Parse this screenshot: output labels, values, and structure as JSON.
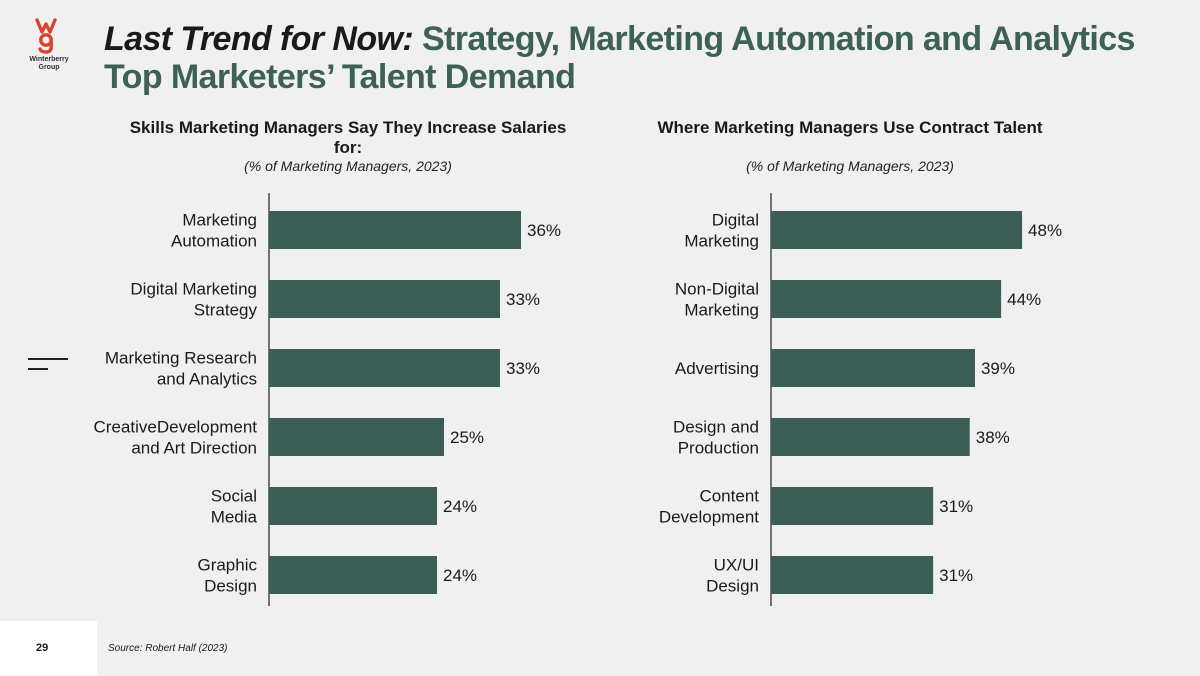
{
  "logo": {
    "text_line1": "Winterberry",
    "text_line2": "Group"
  },
  "title": {
    "lead": "Last Trend for Now:",
    "rest": "Strategy, Marketing Automation and Analytics",
    "line2": "Top Marketers’ Talent Demand"
  },
  "colors": {
    "bar": "#3b5f56",
    "title_accent": "#3d6057",
    "logo_red": "#d9442b"
  },
  "chart_data": [
    {
      "type": "bar",
      "orientation": "horizontal",
      "title": "Skills Marketing Managers Say They Increase Salaries for:",
      "subtitle": "(% of Marketing Managers, 2023)",
      "categories": [
        [
          "Marketing",
          "Automation"
        ],
        [
          "Digital Marketing",
          "Strategy"
        ],
        [
          "Marketing Research",
          "and Analytics"
        ],
        [
          "CreativeDevelopment",
          "and Art Direction"
        ],
        [
          "Social",
          "Media"
        ],
        [
          "Graphic",
          "Design"
        ]
      ],
      "values": [
        36,
        33,
        33,
        25,
        24,
        24
      ],
      "data_labels": [
        "36%",
        "33%",
        "33%",
        "25%",
        "24%",
        "24%"
      ],
      "unit": "%"
    },
    {
      "type": "bar",
      "orientation": "horizontal",
      "title": "Where Marketing Managers Use Contract Talent",
      "subtitle": "(% of Marketing Managers, 2023)",
      "categories": [
        [
          "Digital",
          "Marketing"
        ],
        [
          "Non-Digital",
          "Marketing"
        ],
        [
          "Advertising"
        ],
        [
          "Design and",
          "Production"
        ],
        [
          "Content",
          "Development"
        ],
        [
          "UX/UI",
          "Design"
        ]
      ],
      "values": [
        48,
        44,
        39,
        38,
        31,
        31
      ],
      "data_labels": [
        "48%",
        "44%",
        "39%",
        "38%",
        "31%",
        "31%"
      ],
      "unit": "%"
    }
  ],
  "footer": {
    "page_number": "29",
    "source": "Source: Robert Half (2023)"
  }
}
